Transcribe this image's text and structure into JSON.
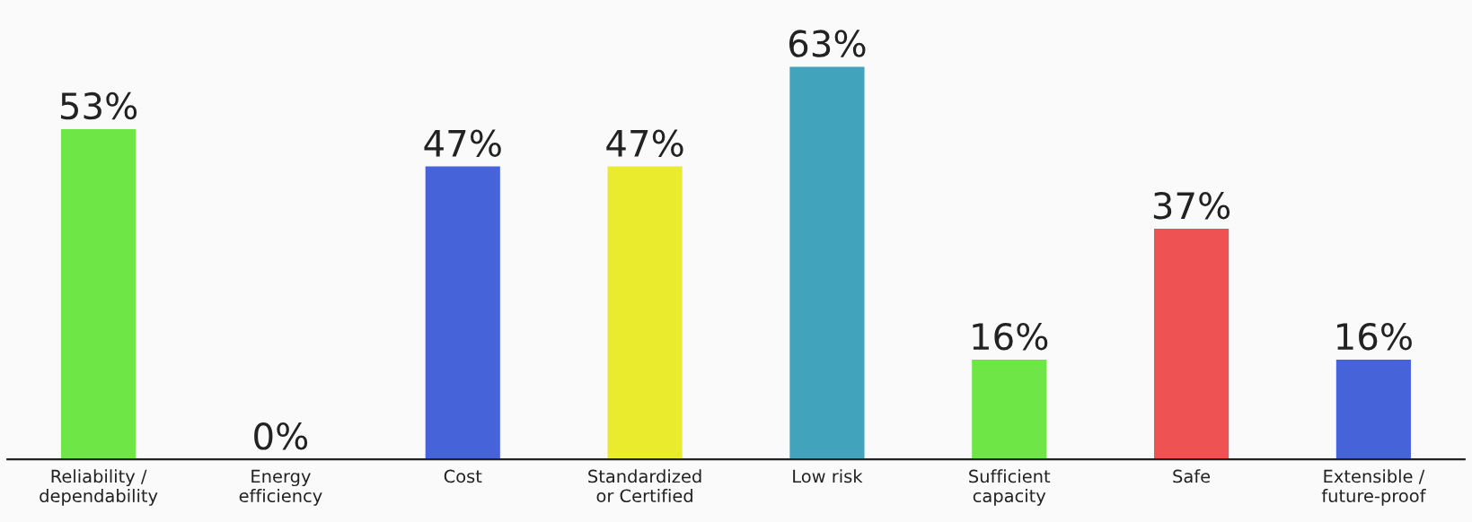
{
  "chart_data": {
    "type": "bar",
    "categories": [
      "Reliability /\ndependability",
      "Energy\nefficiency",
      "Cost",
      "Standardized\nor Certified",
      "Low risk",
      "Sufficient\ncapacity",
      "Safe",
      "Extensible /\nfuture-proof"
    ],
    "values": [
      53,
      0,
      47,
      47,
      63,
      16,
      37,
      16
    ],
    "value_labels": [
      "53%",
      "0%",
      "47%",
      "47%",
      "63%",
      "16%",
      "37%",
      "16%"
    ],
    "colors": [
      "#6ee646",
      "#4763d9",
      "#4763d9",
      "#ebeb2e",
      "#41a3bc",
      "#6ee646",
      "#ef5252",
      "#4763d9"
    ],
    "tick_labels": "x",
    "grid": false,
    "legend": false
  }
}
